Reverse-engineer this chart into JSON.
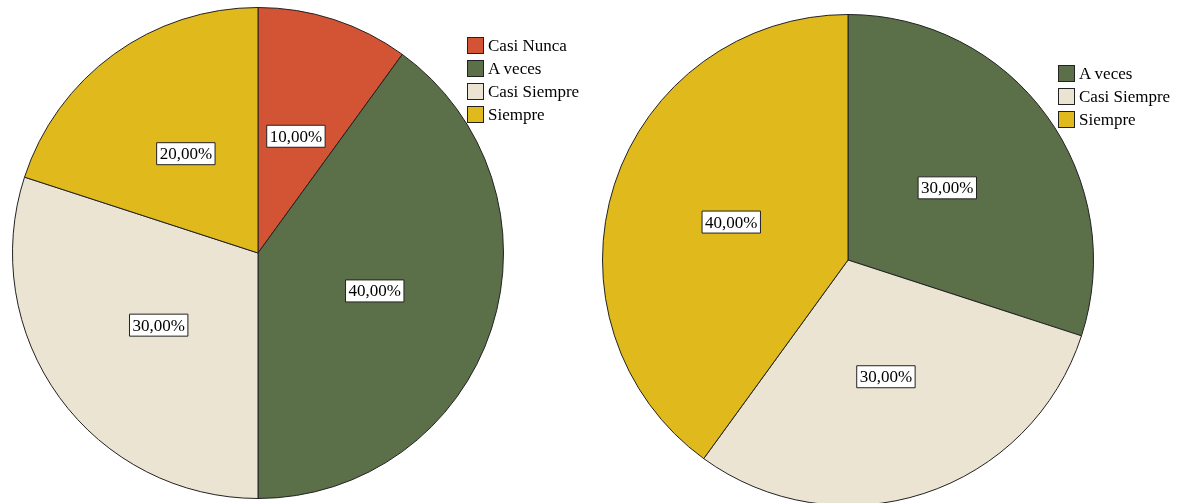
{
  "chart_data": [
    {
      "type": "pie",
      "categories": [
        "Casi Nunca",
        "A veces",
        "Casi Siempre",
        "Siempre"
      ],
      "values": [
        10,
        40,
        30,
        20
      ],
      "colors": [
        "#d35434",
        "#5b7049",
        "#ebe4d2",
        "#e0ba1c"
      ],
      "value_labels": [
        "10,00%",
        "40,00%",
        "30,00%",
        "20,00%"
      ],
      "legend": "top right"
    },
    {
      "type": "pie",
      "categories": [
        "A veces",
        "Casi Siempre",
        "Siempre"
      ],
      "values": [
        30,
        30,
        40
      ],
      "colors": [
        "#5b7049",
        "#ebe4d2",
        "#e0ba1c"
      ],
      "value_labels": [
        "30,00%",
        "30,00%",
        "40,00%"
      ],
      "legend": "top right"
    }
  ]
}
